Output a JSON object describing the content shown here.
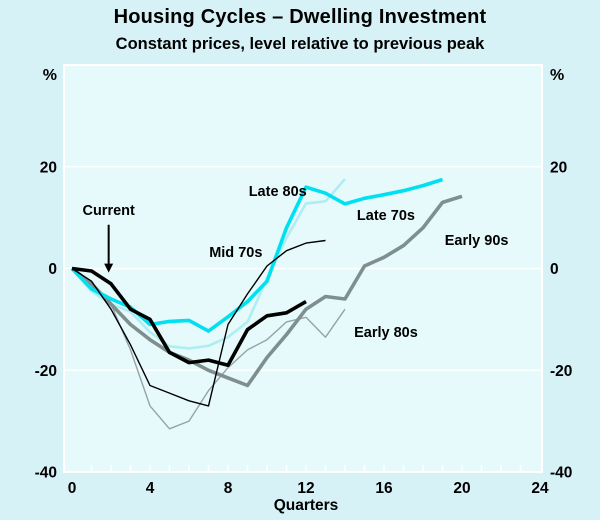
{
  "chart_data": {
    "type": "line",
    "title": "Housing Cycles – Dwelling Investment",
    "subtitle": "Constant prices, level relative to previous peak",
    "xlabel": "Quarters",
    "unit": "%",
    "x_range": [
      0,
      24
    ],
    "x_tick_labels": [
      0,
      4,
      8,
      12,
      16,
      20,
      24
    ],
    "x_minor_tick_step": 1,
    "y_range": [
      -40,
      40
    ],
    "y_gridlines": [
      20,
      0,
      -20
    ],
    "y_tick_labels": [
      20,
      0,
      -20,
      -40
    ],
    "grid_on": true,
    "grid_color": "#ffffff",
    "plot_bg_color": "#e6fafc",
    "outer_bg_color": "#d7f2f7",
    "legend_position": "in-plot-labels",
    "series": [
      {
        "name": "Late 80s",
        "color": "#aeeef3",
        "width": 2.6,
        "values": [
          0,
          -4.5,
          -7,
          -8.5,
          -12.5,
          -15.3,
          -15.7,
          -15.2,
          -13.5,
          -10.5,
          -2,
          6,
          12.8,
          13.2,
          17.6
        ]
      },
      {
        "name": "Early 80s",
        "color": "#96a3a3",
        "width": 1.4,
        "values": [
          0,
          -3,
          -7,
          -16,
          -27,
          -31.5,
          -30,
          -24,
          -19.5,
          -16,
          -14,
          -10.5,
          -9.6,
          -13.5,
          -8
        ]
      },
      {
        "name": "Early 90s",
        "color": "#7f8e8e",
        "width": 3.6,
        "values": [
          0,
          -3,
          -7,
          -11,
          -14,
          -16.5,
          -18,
          -20,
          -21.5,
          -23,
          -17.5,
          -13,
          -8,
          -5.5,
          -6,
          0.5,
          2.2,
          4.5,
          8,
          13,
          14.2
        ]
      },
      {
        "name": "Late 70s",
        "color": "#00e0f0",
        "width": 3.6,
        "values": [
          0,
          -4,
          -6,
          -7.6,
          -11,
          -10.4,
          -10.2,
          -12.3,
          -9.5,
          -6.5,
          -2.5,
          8,
          16,
          14.8,
          12.7,
          13.8,
          14.5,
          15.3,
          16.3,
          17.5
        ]
      },
      {
        "name": "Mid 70s",
        "color": "#000000",
        "width": 1.4,
        "values": [
          0,
          -2.5,
          -8,
          -15,
          -23,
          -24.5,
          -26,
          -27,
          -11,
          -5,
          0.5,
          3.5,
          5,
          5.5
        ]
      },
      {
        "name": "Current",
        "color": "#000000",
        "width": 3.6,
        "values": [
          0,
          -0.5,
          -3,
          -8,
          -10,
          -16.5,
          -18.5,
          -18,
          -19,
          -12,
          -9.3,
          -8.7,
          -6.5
        ]
      }
    ],
    "annotations": [
      {
        "text": "Current",
        "q": 1.88,
        "v": 11.5,
        "arrow": {
          "from_v": 8.6,
          "to_v": -0.8
        }
      },
      {
        "text": "Mid 70s",
        "q": 8.4,
        "v": 3.2
      },
      {
        "text": "Late 80s",
        "q": 10.55,
        "v": 15.2
      },
      {
        "text": "Late 70s",
        "q": 16.1,
        "v": 10.5
      },
      {
        "text": "Early 90s",
        "q": 20.75,
        "v": 5.6
      },
      {
        "text": "Early 80s",
        "q": 16.1,
        "v": -12.5
      }
    ]
  }
}
